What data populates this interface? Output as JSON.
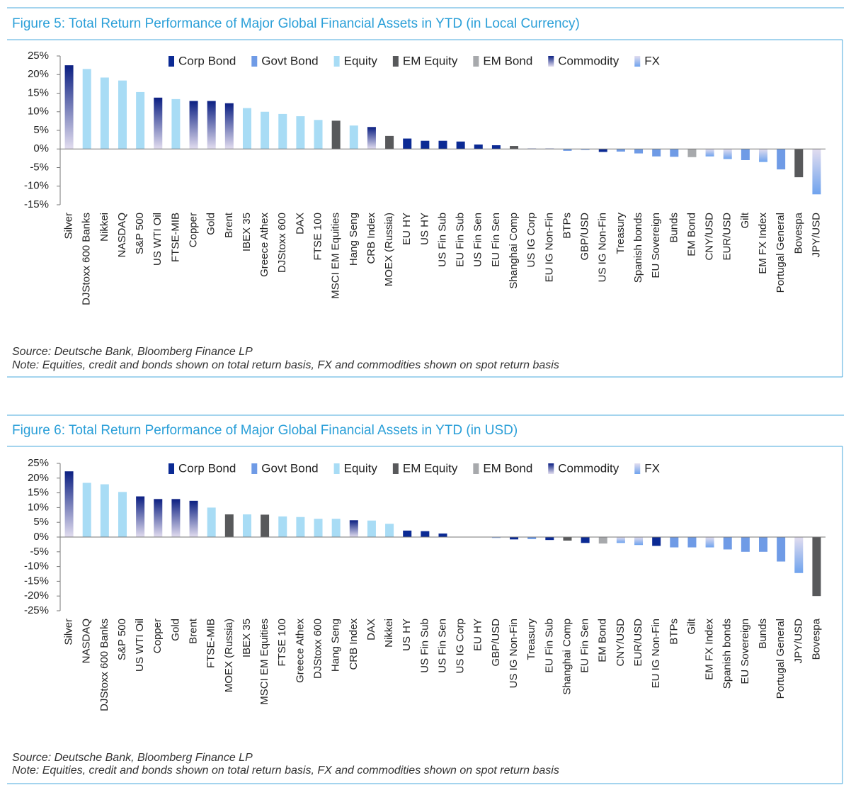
{
  "chart_data": [
    {
      "type": "bar",
      "title": "Figure 5: Total Return Performance of Major Global Financial Assets in YTD (in Local Currency)",
      "source": "Source: Deutsche Bank, Bloomberg Finance LP",
      "note": "Note: Equities, credit and bonds shown on total return basis, FX and commodities shown on spot return basis",
      "categories": [
        "Silver",
        "DJStoxx 600 Banks",
        "Nikkei",
        "NASDAQ",
        "S&P 500",
        "US WTI Oil",
        "FTSE-MIB",
        "Copper",
        "Gold",
        "Brent",
        "IBEX 35",
        "Greece Athex",
        "DJStoxx 600",
        "DAX",
        "FTSE 100",
        "MSCI EM Equities",
        "Hang Seng",
        "CRB Index",
        "MOEX (Russia)",
        "EU HY",
        "US HY",
        "US Fin Sub",
        "EU Fin Sub",
        "US Fin Sen",
        "EU Fin Sen",
        "Shanghai Comp",
        "US IG Corp",
        "EU IG Non-Fin",
        "BTPs",
        "GBP/USD",
        "US IG Non-Fin",
        "Treasury",
        "Spanish bonds",
        "EU Sovereign",
        "Bunds",
        "EM Bond",
        "CNY/USD",
        "EUR/USD",
        "Gilt",
        "EM FX Index",
        "Portugal General",
        "Bovespa",
        "JPY/USD"
      ],
      "series": [
        {
          "name": "Corp Bond",
          "color": "#0b2a94",
          "values": [
            null,
            null,
            null,
            null,
            null,
            null,
            null,
            null,
            null,
            null,
            null,
            null,
            null,
            null,
            null,
            null,
            null,
            null,
            null,
            2.8,
            2.2,
            2.2,
            2.0,
            1.2,
            1.0,
            null,
            0.1,
            0.1,
            null,
            null,
            -0.8,
            null,
            null,
            null,
            null,
            null,
            null,
            null,
            null,
            null,
            null,
            null,
            null
          ]
        },
        {
          "name": "Govt Bond",
          "color": "#6f9be6",
          "values": [
            null,
            null,
            null,
            null,
            null,
            null,
            null,
            null,
            null,
            null,
            null,
            null,
            null,
            null,
            null,
            null,
            null,
            null,
            null,
            null,
            null,
            null,
            null,
            null,
            null,
            null,
            null,
            null,
            -0.5,
            null,
            null,
            -0.7,
            -1.2,
            -2.0,
            -2.1,
            null,
            null,
            null,
            -3.0,
            null,
            -5.5,
            null,
            null
          ]
        },
        {
          "name": "Equity",
          "color": "#a8dcf5",
          "values": [
            null,
            21.5,
            19.2,
            18.4,
            15.3,
            null,
            13.4,
            null,
            null,
            null,
            11.0,
            10.0,
            9.4,
            8.8,
            7.8,
            null,
            6.3,
            null,
            null,
            null,
            null,
            null,
            null,
            null,
            null,
            null,
            null,
            null,
            null,
            null,
            null,
            null,
            null,
            null,
            null,
            null,
            null,
            null,
            null,
            null,
            null,
            null,
            null
          ]
        },
        {
          "name": "EM Equity",
          "color": "#58595b",
          "values": [
            null,
            null,
            null,
            null,
            null,
            null,
            null,
            null,
            null,
            null,
            null,
            null,
            null,
            null,
            null,
            7.6,
            null,
            null,
            3.5,
            null,
            null,
            null,
            null,
            null,
            null,
            0.8,
            null,
            null,
            null,
            null,
            null,
            null,
            null,
            null,
            null,
            null,
            null,
            null,
            null,
            null,
            null,
            -7.6,
            null
          ]
        },
        {
          "name": "EM Bond",
          "color": "#a7a9ac",
          "values": [
            null,
            null,
            null,
            null,
            null,
            null,
            null,
            null,
            null,
            null,
            null,
            null,
            null,
            null,
            null,
            null,
            null,
            null,
            null,
            null,
            null,
            null,
            null,
            null,
            null,
            null,
            null,
            null,
            null,
            null,
            null,
            null,
            null,
            null,
            null,
            -2.2,
            null,
            null,
            null,
            null,
            null,
            null,
            null
          ]
        },
        {
          "name": "Commodity",
          "color": "#0b1f82",
          "gradient": "#e2ddef",
          "values": [
            22.5,
            null,
            null,
            null,
            null,
            13.8,
            null,
            12.9,
            12.9,
            12.3,
            null,
            null,
            null,
            null,
            null,
            null,
            null,
            5.9,
            null,
            null,
            null,
            null,
            null,
            null,
            null,
            null,
            null,
            null,
            null,
            null,
            null,
            null,
            null,
            null,
            null,
            null,
            null,
            null,
            null,
            null,
            null,
            null,
            null
          ]
        },
        {
          "name": "FX",
          "color": "#6fa3ee",
          "gradient": "#e2ddef",
          "values": [
            null,
            null,
            null,
            null,
            null,
            null,
            null,
            null,
            null,
            null,
            null,
            null,
            null,
            null,
            null,
            null,
            null,
            null,
            null,
            null,
            null,
            null,
            null,
            null,
            null,
            null,
            null,
            null,
            null,
            -0.3,
            null,
            null,
            null,
            null,
            null,
            null,
            -2.0,
            -2.7,
            null,
            -3.5,
            null,
            null,
            -12.2
          ]
        }
      ],
      "ylim": [
        -15,
        25
      ],
      "yticks": [
        {
          "value": -15,
          "label": "-15%"
        },
        {
          "value": -10,
          "label": "-10%"
        },
        {
          "value": -5,
          "label": "-5%"
        },
        {
          "value": 0,
          "label": "0%"
        },
        {
          "value": 5,
          "label": "5%"
        },
        {
          "value": 10,
          "label": "10%"
        },
        {
          "value": 15,
          "label": "15%"
        },
        {
          "value": 20,
          "label": "20%"
        },
        {
          "value": 25,
          "label": "25%"
        }
      ]
    },
    {
      "type": "bar",
      "title": "Figure 6: Total Return Performance of Major Global Financial Assets in YTD (in USD)",
      "source": "Source: Deutsche Bank, Bloomberg Finance LP",
      "note": "Note: Equities, credit and bonds shown on total return basis, FX and commodities shown on spot return basis",
      "categories": [
        "Silver",
        "NASDAQ",
        "DJStoxx 600 Banks",
        "S&P 500",
        "US WTI Oil",
        "Copper",
        "Gold",
        "Brent",
        "FTSE-MIB",
        "MOEX (Russia)",
        "IBEX 35",
        "MSCI EM Equities",
        "FTSE 100",
        "Greece Athex",
        "DJStoxx 600",
        "Hang Seng",
        "CRB Index",
        "DAX",
        "Nikkei",
        "US HY",
        "US Fin Sub",
        "US Fin Sen",
        "US IG Corp",
        "EU HY",
        "GBP/USD",
        "US IG Non-Fin",
        "Treasury",
        "EU Fin Sub",
        "Shanghai Comp",
        "EU Fin Sen",
        "EM Bond",
        "CNY/USD",
        "EUR/USD",
        "EU IG Non-Fin",
        "BTPs",
        "Gilt",
        "EM FX Index",
        "Spanish bonds",
        "EU Sovereign",
        "Bunds",
        "Portugal General",
        "JPY/USD",
        "Bovespa"
      ],
      "series": [
        {
          "name": "Corp Bond",
          "color": "#0b2a94",
          "values": [
            null,
            null,
            null,
            null,
            null,
            null,
            null,
            null,
            null,
            null,
            null,
            null,
            null,
            null,
            null,
            null,
            null,
            null,
            null,
            2.2,
            2.0,
            1.2,
            0.1,
            0.1,
            null,
            -0.8,
            null,
            -1.0,
            null,
            -2.0,
            null,
            null,
            null,
            -3.0,
            null,
            null,
            null,
            null,
            null,
            null,
            null,
            null,
            null
          ]
        },
        {
          "name": "Govt Bond",
          "color": "#6f9be6",
          "values": [
            null,
            null,
            null,
            null,
            null,
            null,
            null,
            null,
            null,
            null,
            null,
            null,
            null,
            null,
            null,
            null,
            null,
            null,
            null,
            null,
            null,
            null,
            null,
            null,
            null,
            null,
            -0.7,
            null,
            null,
            null,
            null,
            null,
            null,
            null,
            -3.5,
            -3.5,
            null,
            -4.2,
            -5.0,
            -5.0,
            -8.3,
            null,
            null
          ]
        },
        {
          "name": "Equity",
          "color": "#a8dcf5",
          "values": [
            null,
            18.4,
            17.9,
            15.3,
            null,
            null,
            null,
            null,
            10.0,
            null,
            7.7,
            null,
            7.0,
            6.8,
            6.2,
            6.2,
            null,
            5.6,
            4.5,
            null,
            null,
            null,
            null,
            null,
            null,
            null,
            null,
            null,
            null,
            null,
            null,
            null,
            null,
            null,
            null,
            null,
            null,
            null,
            null,
            null,
            null,
            null,
            null
          ]
        },
        {
          "name": "EM Equity",
          "color": "#58595b",
          "values": [
            null,
            null,
            null,
            null,
            null,
            null,
            null,
            null,
            null,
            7.7,
            null,
            7.6,
            null,
            null,
            null,
            null,
            null,
            null,
            null,
            null,
            null,
            null,
            null,
            null,
            null,
            null,
            null,
            null,
            -1.2,
            null,
            null,
            null,
            null,
            null,
            null,
            null,
            null,
            null,
            null,
            null,
            null,
            null,
            -20.0
          ]
        },
        {
          "name": "EM Bond",
          "color": "#a7a9ac",
          "values": [
            null,
            null,
            null,
            null,
            null,
            null,
            null,
            null,
            null,
            null,
            null,
            null,
            null,
            null,
            null,
            null,
            null,
            null,
            null,
            null,
            null,
            null,
            null,
            null,
            null,
            null,
            null,
            null,
            null,
            null,
            -2.2,
            null,
            null,
            null,
            null,
            null,
            null,
            null,
            null,
            null,
            null,
            null,
            null
          ]
        },
        {
          "name": "Commodity",
          "color": "#0b1f82",
          "gradient": "#e2ddef",
          "values": [
            22.3,
            null,
            null,
            null,
            13.8,
            12.9,
            12.9,
            12.3,
            null,
            null,
            null,
            null,
            null,
            null,
            null,
            null,
            5.7,
            null,
            null,
            null,
            null,
            null,
            null,
            null,
            null,
            null,
            null,
            null,
            null,
            null,
            null,
            null,
            null,
            null,
            null,
            null,
            null,
            null,
            null,
            null,
            null,
            null,
            null
          ]
        },
        {
          "name": "FX",
          "color": "#6fa3ee",
          "gradient": "#e2ddef",
          "values": [
            null,
            null,
            null,
            null,
            null,
            null,
            null,
            null,
            null,
            null,
            null,
            null,
            null,
            null,
            null,
            null,
            null,
            null,
            null,
            null,
            null,
            null,
            null,
            null,
            -0.3,
            null,
            null,
            null,
            null,
            null,
            null,
            -2.0,
            -2.7,
            null,
            null,
            null,
            -3.5,
            null,
            null,
            null,
            null,
            -12.2,
            null
          ]
        }
      ],
      "ylim": [
        -25,
        25
      ],
      "yticks": [
        {
          "value": -25,
          "label": "-25%"
        },
        {
          "value": -20,
          "label": "-20%"
        },
        {
          "value": -15,
          "label": "-15%"
        },
        {
          "value": -10,
          "label": "-10%"
        },
        {
          "value": -5,
          "label": "-5%"
        },
        {
          "value": 0,
          "label": "0%"
        },
        {
          "value": 5,
          "label": "5%"
        },
        {
          "value": 10,
          "label": "10%"
        },
        {
          "value": 15,
          "label": "15%"
        },
        {
          "value": 20,
          "label": "20%"
        },
        {
          "value": 25,
          "label": "25%"
        }
      ]
    }
  ]
}
